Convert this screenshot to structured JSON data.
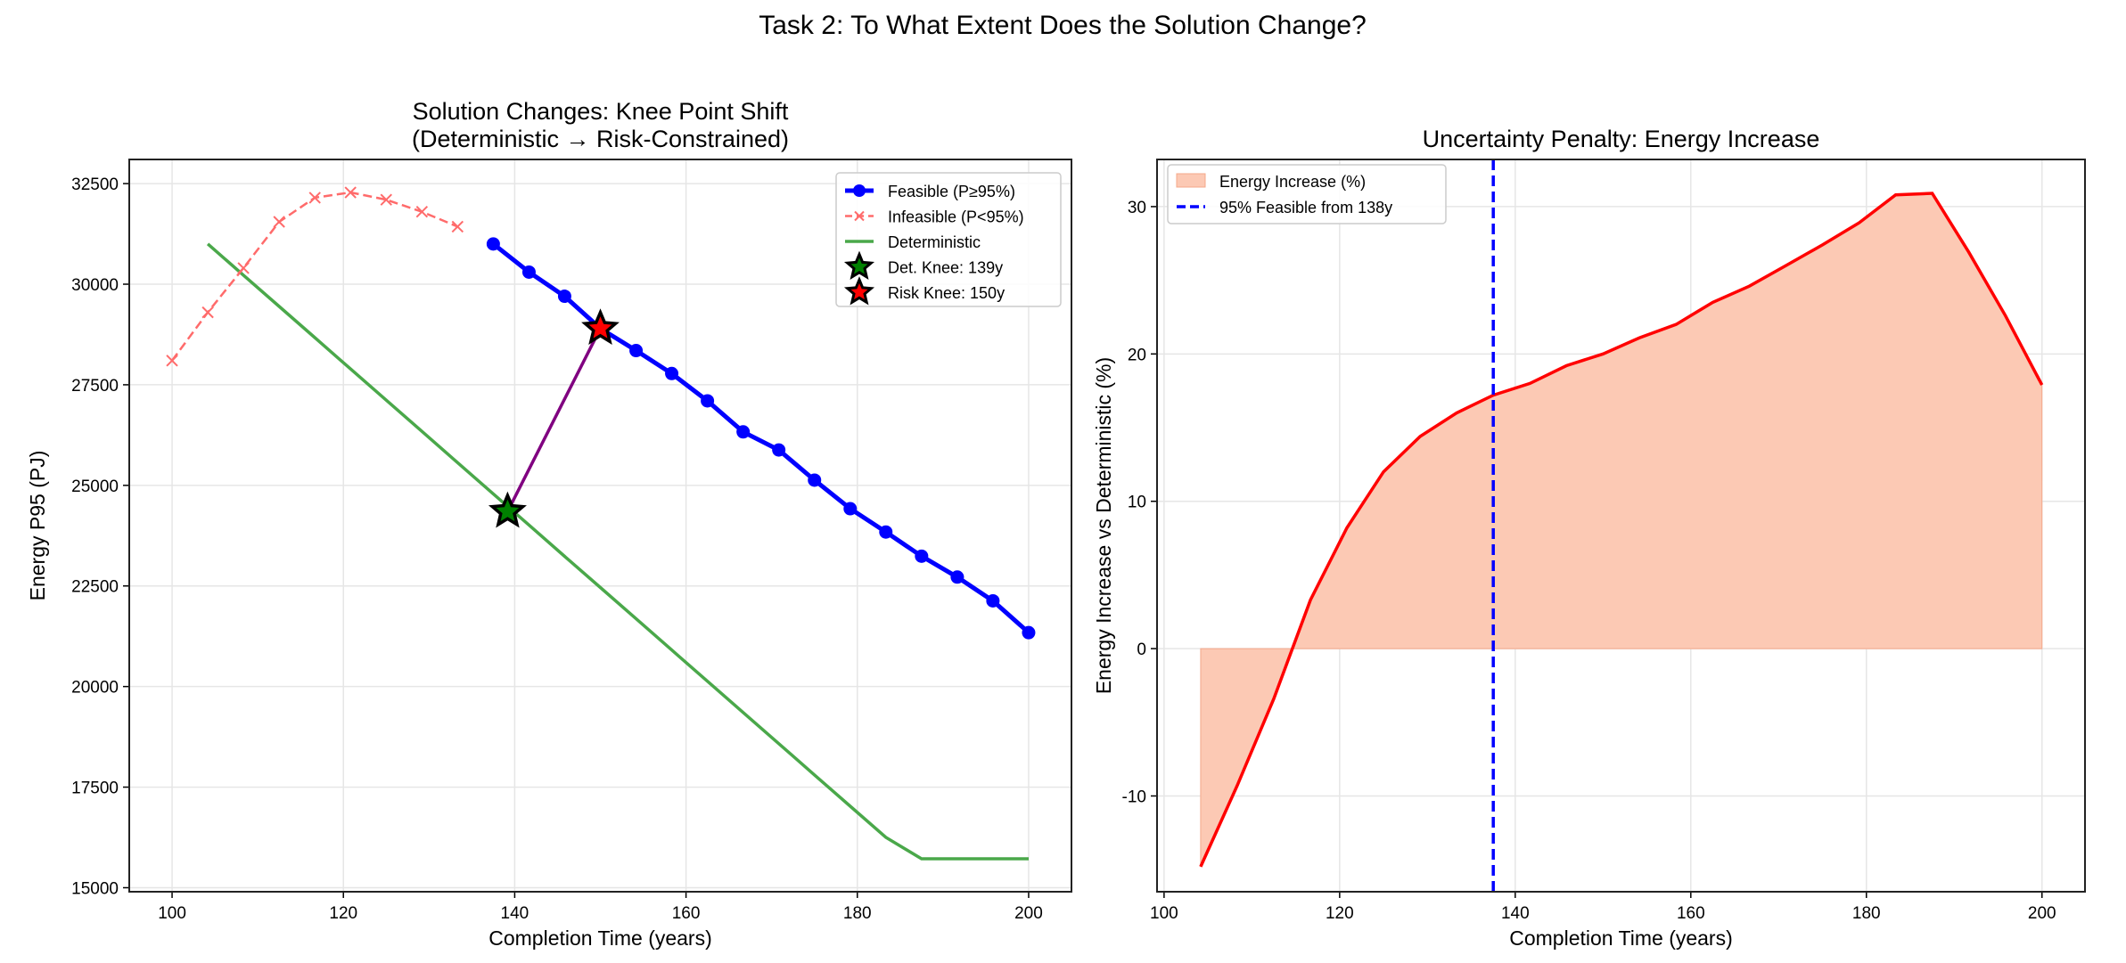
{
  "suptitle": "Task 2: To What Extent Does the Solution Change?",
  "chart_data": [
    {
      "type": "line",
      "title": "Solution Changes: Knee Point Shift\n(Deterministic → Risk-Constrained)",
      "title_lines": [
        "Solution Changes: Knee Point Shift",
        "(Deterministic → Risk-Constrained)"
      ],
      "xlabel": "Completion Time (years)",
      "ylabel": "Energy P95 (PJ)",
      "xlim": [
        95,
        205
      ],
      "ylim": [
        14900,
        33100
      ],
      "xticks": [
        100,
        120,
        140,
        160,
        180,
        200
      ],
      "yticks": [
        15000,
        17500,
        20000,
        22500,
        25000,
        27500,
        30000,
        32500
      ],
      "grid": true,
      "legend_placement": "top-right",
      "series": [
        {
          "name": "Feasible (P≥95%)",
          "color": "#0000ff",
          "style": "solid-circle",
          "x": [
            137.5,
            141.67,
            145.83,
            150,
            154.17,
            158.33,
            162.5,
            166.67,
            170.83,
            175,
            179.17,
            183.33,
            187.5,
            191.67,
            195.83,
            200
          ],
          "y": [
            31000,
            30300,
            29700,
            28900,
            28350,
            27780,
            27100,
            26330,
            25880,
            25130,
            24420,
            23840,
            23240,
            22720,
            22130,
            21340
          ]
        },
        {
          "name": "Infeasible (P<95%)",
          "color": "#ff6b6b",
          "style": "dashed-x",
          "x": [
            100,
            104.17,
            108.33,
            112.5,
            116.67,
            120.83,
            125,
            129.17,
            133.33
          ],
          "y": [
            28100,
            29300,
            30400,
            31550,
            32150,
            32280,
            32100,
            31800,
            31430
          ]
        },
        {
          "name": "Deterministic",
          "color": "#4aa84a",
          "style": "solid",
          "x": [
            104.17,
            108.33,
            112.5,
            116.67,
            120.83,
            125,
            129.17,
            133.33,
            137.5,
            141.67,
            145.83,
            150,
            154.17,
            158.33,
            162.5,
            166.67,
            170.83,
            175,
            179.17,
            183.33,
            187.5,
            191.67,
            195.83,
            200
          ],
          "y": [
            31000,
            30224,
            29447,
            28671,
            27895,
            27118,
            26342,
            25566,
            24789,
            24013,
            23237,
            22461,
            21684,
            20908,
            20132,
            19355,
            18579,
            17803,
            17026,
            16250,
            15720,
            15720,
            15720,
            15720
          ]
        }
      ],
      "knee_points": [
        {
          "name": "Det. Knee: 139y",
          "x": 139.17,
          "y": 24350,
          "color": "#008000"
        },
        {
          "name": "Risk Knee: 150y",
          "x": 150,
          "y": 28900,
          "color": "#ff0000"
        }
      ],
      "shift_line_color": "#800080"
    },
    {
      "type": "area",
      "title": "Uncertainty Penalty: Energy Increase",
      "xlabel": "Completion Time (years)",
      "ylabel": "Energy Increase vs Deterministic (%)",
      "xlim": [
        99.2,
        204.9
      ],
      "ylim": [
        -16.5,
        33.2
      ],
      "xticks": [
        100,
        120,
        140,
        160,
        180,
        200
      ],
      "yticks": [
        -10,
        0,
        10,
        20,
        30
      ],
      "grid": true,
      "legend_placement": "top-left",
      "series": [
        {
          "name": "Energy Increase (%)",
          "line_color": "#ff0000",
          "fill_color": "#fcc9b4",
          "x": [
            104.17,
            108.33,
            112.5,
            116.67,
            120.83,
            125,
            129.17,
            133.33,
            137.5,
            141.67,
            145.83,
            150,
            154.17,
            158.33,
            162.5,
            166.67,
            170.83,
            175,
            179.17,
            183.33,
            187.5,
            191.67,
            195.83,
            200
          ],
          "y": [
            -14.8,
            -9.3,
            -3.4,
            3.3,
            8.2,
            12.0,
            14.4,
            16.0,
            17.2,
            18.0,
            19.2,
            20.0,
            21.1,
            22.0,
            23.5,
            24.6,
            26.0,
            27.4,
            28.9,
            30.8,
            30.9,
            26.9,
            22.6,
            17.9
          ]
        }
      ],
      "vline": {
        "name": "95% Feasible from 138y",
        "x": 137.5,
        "color": "#0000ff"
      }
    }
  ]
}
